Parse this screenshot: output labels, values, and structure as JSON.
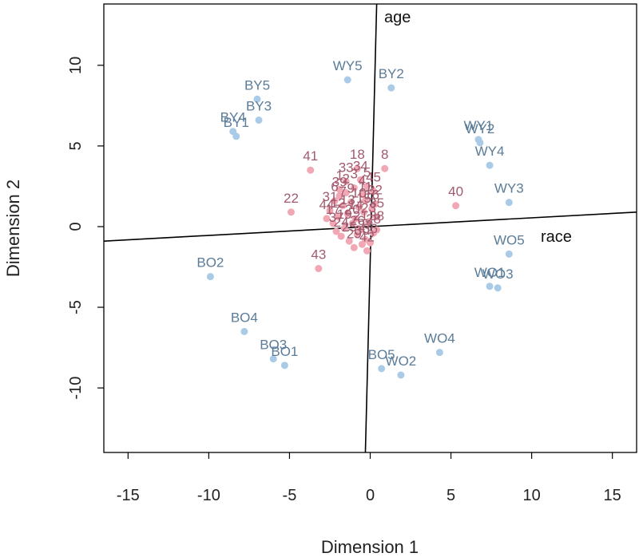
{
  "chart_data": {
    "type": "scatter",
    "title": "",
    "xlabel": "Dimension 1",
    "ylabel": "Dimension 2",
    "xlim": [
      -16.5,
      16.5
    ],
    "ylim": [
      -14,
      13.8
    ],
    "xticks": [
      -15,
      -10,
      -5,
      0,
      5,
      10,
      15
    ],
    "yticks": [
      -10,
      -5,
      0,
      5,
      10
    ],
    "colors": {
      "group_point": "#a9cbe8",
      "group_text": "#5b7c99",
      "item_point": "#f2a7b5",
      "item_text": "#a15a6e",
      "axis_line": "#000000"
    },
    "biplot_axes": [
      {
        "name": "age",
        "from": [
          -0.3,
          -14
        ],
        "to": [
          0.4,
          13.8
        ]
      },
      {
        "name": "race",
        "from": [
          -16.5,
          -0.9
        ],
        "to": [
          16.5,
          0.9
        ]
      }
    ],
    "series": [
      {
        "name": "groups",
        "points": [
          {
            "label": "BY1",
            "x": -8.3,
            "y": 5.6
          },
          {
            "label": "BY2",
            "x": 1.3,
            "y": 8.6
          },
          {
            "label": "BY3",
            "x": -6.9,
            "y": 6.6
          },
          {
            "label": "BY4",
            "x": -8.5,
            "y": 5.9
          },
          {
            "label": "BY5",
            "x": -7.0,
            "y": 7.9
          },
          {
            "label": "WY1",
            "x": 6.7,
            "y": 5.4
          },
          {
            "label": "WY2",
            "x": 6.8,
            "y": 5.2
          },
          {
            "label": "WY3",
            "x": 8.6,
            "y": 1.5
          },
          {
            "label": "WY4",
            "x": 7.4,
            "y": 3.8
          },
          {
            "label": "WY5",
            "x": -1.4,
            "y": 9.1
          },
          {
            "label": "WO1",
            "x": 7.4,
            "y": -3.7
          },
          {
            "label": "WO2",
            "x": 1.9,
            "y": -9.2
          },
          {
            "label": "WO3",
            "x": 7.9,
            "y": -3.8
          },
          {
            "label": "WO4",
            "x": 4.3,
            "y": -7.8
          },
          {
            "label": "WO5",
            "x": 8.6,
            "y": -1.7
          },
          {
            "label": "BO1",
            "x": -5.3,
            "y": -8.6
          },
          {
            "label": "BO2",
            "x": -9.9,
            "y": -3.1
          },
          {
            "label": "BO3",
            "x": -6.0,
            "y": -8.2
          },
          {
            "label": "BO4",
            "x": -7.8,
            "y": -6.5
          },
          {
            "label": "BO5",
            "x": 0.7,
            "y": -8.8
          }
        ]
      },
      {
        "name": "items",
        "points": [
          {
            "label": "41",
            "x": -3.7,
            "y": 3.5
          },
          {
            "label": "18",
            "x": -0.8,
            "y": 3.6
          },
          {
            "label": "8",
            "x": 0.9,
            "y": 3.6
          },
          {
            "label": "40",
            "x": 5.3,
            "y": 1.3
          },
          {
            "label": "22",
            "x": -4.9,
            "y": 0.9
          },
          {
            "label": "43",
            "x": -3.2,
            "y": -2.6
          },
          {
            "label": "1",
            "x": -1.9,
            "y": 2.3
          },
          {
            "label": "2",
            "x": -1.5,
            "y": 2.1
          },
          {
            "label": "3",
            "x": -1.0,
            "y": 2.4
          },
          {
            "label": "4",
            "x": -0.5,
            "y": 2.0
          },
          {
            "label": "5",
            "x": -0.2,
            "y": 2.5
          },
          {
            "label": "6",
            "x": -2.2,
            "y": 1.6
          },
          {
            "label": "7",
            "x": -1.7,
            "y": 1.3
          },
          {
            "label": "9",
            "x": -1.2,
            "y": 1.5
          },
          {
            "label": "10",
            "x": -0.7,
            "y": 1.2
          },
          {
            "label": "11",
            "x": -0.3,
            "y": 1.6
          },
          {
            "label": "12",
            "x": -2.0,
            "y": 0.6
          },
          {
            "label": "13",
            "x": -1.4,
            "y": 0.8
          },
          {
            "label": "14",
            "x": -0.9,
            "y": 0.5
          },
          {
            "label": "15",
            "x": -0.4,
            "y": 0.9
          },
          {
            "label": "16",
            "x": 0.1,
            "y": 1.1
          },
          {
            "label": "17",
            "x": -2.3,
            "y": 0.2
          },
          {
            "label": "19",
            "x": -1.6,
            "y": -0.1
          },
          {
            "label": "20",
            "x": -1.1,
            "y": 0.2
          },
          {
            "label": "21",
            "x": -0.6,
            "y": -0.2
          },
          {
            "label": "23",
            "x": -0.1,
            "y": 0.3
          },
          {
            "label": "24",
            "x": -1.8,
            "y": -0.6
          },
          {
            "label": "25",
            "x": -1.3,
            "y": -0.9
          },
          {
            "label": "26",
            "x": -0.8,
            "y": -0.5
          },
          {
            "label": "27",
            "x": -0.3,
            "y": -0.8
          },
          {
            "label": "28",
            "x": 0.2,
            "y": -0.4
          },
          {
            "label": "29",
            "x": -1.0,
            "y": -1.3
          },
          {
            "label": "30",
            "x": -0.5,
            "y": -1.1
          },
          {
            "label": "31",
            "x": -2.5,
            "y": 1.0
          },
          {
            "label": "32",
            "x": 0.3,
            "y": 1.4
          },
          {
            "label": "33",
            "x": -1.5,
            "y": 2.8
          },
          {
            "label": "34",
            "x": -0.6,
            "y": 2.9
          },
          {
            "label": "35",
            "x": 0.4,
            "y": 0.6
          },
          {
            "label": "36",
            "x": 0.0,
            "y": -1.0
          },
          {
            "label": "37",
            "x": -2.1,
            "y": -0.3
          },
          {
            "label": "38",
            "x": 0.4,
            "y": -0.2
          },
          {
            "label": "39",
            "x": -1.9,
            "y": 1.9
          },
          {
            "label": "42",
            "x": -0.2,
            "y": -1.5
          },
          {
            "label": "44",
            "x": -2.7,
            "y": 0.5
          },
          {
            "label": "45",
            "x": 0.2,
            "y": 2.2
          }
        ]
      }
    ]
  }
}
